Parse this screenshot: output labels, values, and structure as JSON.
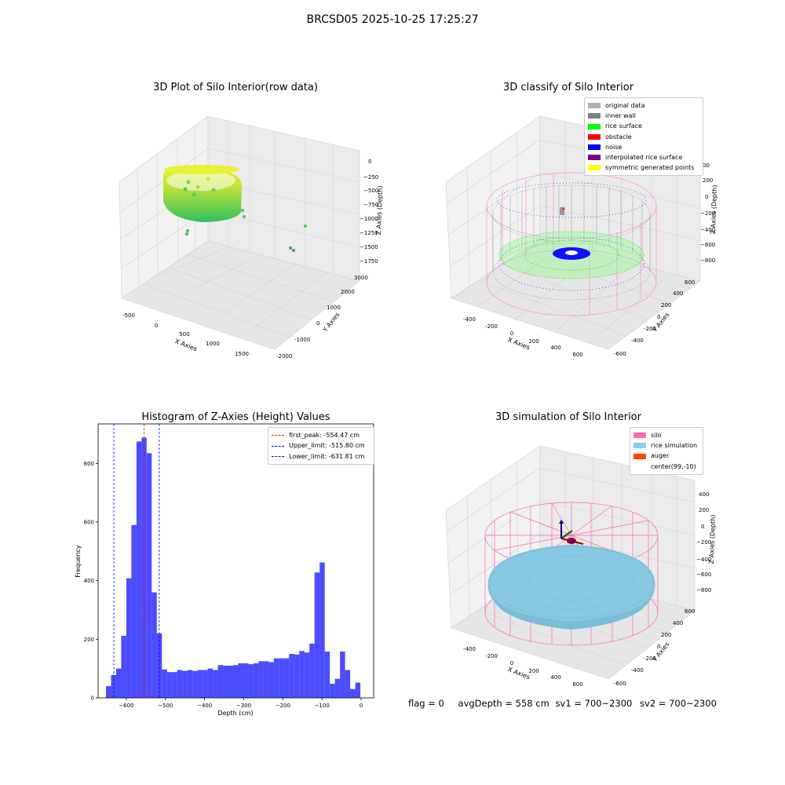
{
  "suptitle": "BRCSD05 2025-10-25 17:25:27",
  "panels": {
    "raw": {
      "title": "3D Plot of Silo Interior(row data)",
      "xlabel": "X Axies",
      "ylabel": "Y Axies",
      "zlabel": "Z Axies (Depth)",
      "xticks": [
        "-500",
        "0",
        "500",
        "1000",
        "1500"
      ],
      "yticks": [
        "-2000",
        "-1000",
        "0",
        "1000",
        "2000",
        "3000"
      ],
      "zticks": [
        "0",
        "−250",
        "−500",
        "−750",
        "−1000",
        "−1250",
        "−1500",
        "−1750"
      ]
    },
    "classify": {
      "title": "3D classify of Silo Interior",
      "xlabel": "X Axies",
      "ylabel": "Y Axies",
      "zlabel": "Z Axies (Depth)",
      "xticks": [
        "-400",
        "-200",
        "0",
        "200",
        "400",
        "600"
      ],
      "yticks": [
        "-600",
        "-400",
        "-200",
        "0",
        "200",
        "400",
        "600"
      ],
      "zticks": [
        "200",
        "0",
        "−200",
        "−400",
        "−600",
        "−800"
      ],
      "ztop": "00",
      "legend": [
        {
          "label": "original data",
          "color": "#b0b0b0"
        },
        {
          "label": "inner wall",
          "color": "#808080"
        },
        {
          "label": "rice surface",
          "color": "#00ff00"
        },
        {
          "label": "obstacle",
          "color": "#ff0000"
        },
        {
          "label": "noise",
          "color": "#0000ff"
        },
        {
          "label": "interpolated rice surface",
          "color": "#800080"
        },
        {
          "label": "symmetric generated points",
          "color": "#ffff00"
        }
      ]
    },
    "simulation": {
      "title": "3D simulation of Silo Interior",
      "xlabel": "X Axies",
      "ylabel": "Y Axies",
      "zlabel": "Z Axies (Depth)",
      "xticks": [
        "-400",
        "-200",
        "0",
        "200",
        "400",
        "600"
      ],
      "yticks": [
        "-600",
        "-400",
        "-200",
        "0",
        "200",
        "400",
        "600"
      ],
      "zticks": [
        "400",
        "200",
        "0",
        "−200",
        "−400",
        "−600",
        "−800"
      ],
      "legend": [
        {
          "label": "silo",
          "color": "#ff69b4"
        },
        {
          "label": "rice simulation",
          "color": "#87ceeb"
        },
        {
          "label": "auger",
          "color": "#ff4500"
        },
        {
          "label": "center(99,-10)",
          "color": "#ffffff"
        }
      ]
    }
  },
  "chart_data": [
    {
      "type": "histogram",
      "title": "Histogram of Z-Axies (Height) Values",
      "xlabel": "Depth (cm)",
      "ylabel": "Frequency",
      "xlim": [
        -672,
        32
      ],
      "ylim": [
        0,
        935
      ],
      "xticks": [
        -600,
        -500,
        -400,
        -300,
        -200,
        -100,
        0
      ],
      "yticks": [
        0,
        200,
        400,
        600,
        800
      ],
      "bar_color": "#0000ff",
      "bins_start": -652,
      "bin_width": 13,
      "values": [
        40,
        78,
        100,
        212,
        408,
        590,
        875,
        888,
        835,
        360,
        220,
        97,
        88,
        88,
        95,
        92,
        95,
        92,
        95,
        95,
        100,
        95,
        112,
        110,
        110,
        112,
        118,
        118,
        115,
        118,
        125,
        125,
        122,
        135,
        135,
        135,
        150,
        148,
        160,
        155,
        185,
        428,
        462,
        158,
        48,
        65,
        158,
        95,
        30,
        52
      ],
      "vlines": [
        {
          "label": "first_peak: -554.47 cm",
          "value": -554.47,
          "color": "#ff0000"
        },
        {
          "label": "Upper_limit: -515.80 cm",
          "value": -515.8,
          "color": "#0000ff"
        },
        {
          "label": "Lower_limit: -631.81 cm",
          "value": -631.81,
          "color": "#0000ff"
        }
      ]
    }
  ],
  "status": {
    "flag": "flag = 0",
    "avg_depth": "avgDepth = 558 cm",
    "sv1": "sv1 = 700~2300",
    "sv2": "sv2 = 700~2300"
  }
}
